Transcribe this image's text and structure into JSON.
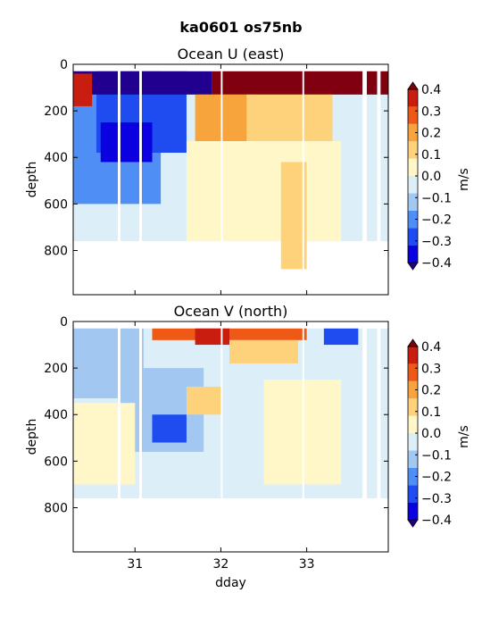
{
  "suptitle": "ka0601 os75nb",
  "colors": {
    "levels": [
      "#0a00e0",
      "#1f4cf0",
      "#4f8ef5",
      "#a2c8f2",
      "#dceff8",
      "#fff7c8",
      "#fdd27a",
      "#f8a43c",
      "#ee5a16",
      "#c91d10"
    ],
    "over": "#800010",
    "under": "#22008f",
    "nodata": "#ffffff"
  },
  "chart_data": [
    {
      "type": "heatmap",
      "title": "Ocean U (east)",
      "xlabel": "",
      "ylabel": "depth",
      "xlim": [
        30.28,
        33.95
      ],
      "ylim": [
        990,
        0
      ],
      "xticks": [
        31,
        32,
        33
      ],
      "yticks": [
        0,
        200,
        400,
        600,
        800
      ],
      "colorbar": {
        "label": "m/s",
        "ticks": [
          0.4,
          0.3,
          0.2,
          0.1,
          0.0,
          -0.1,
          -0.2,
          -0.3,
          -0.4
        ],
        "tick_labels": [
          "0.4",
          "0.3",
          "0.2",
          "0.1",
          "0.0",
          "−0.1",
          "−0.2",
          "−0.3",
          "−0.4"
        ],
        "range": [
          -0.4,
          0.4
        ],
        "extend": "both"
      },
      "regions": [
        {
          "x": [
            30.28,
            33.95
          ],
          "depth": [
            30,
            760
          ],
          "value": -0.05
        },
        {
          "x": [
            30.28,
            31.3
          ],
          "depth": [
            30,
            600
          ],
          "value": -0.18
        },
        {
          "x": [
            30.55,
            31.6
          ],
          "depth": [
            30,
            380
          ],
          "value": -0.32
        },
        {
          "x": [
            30.28,
            31.9
          ],
          "depth": [
            30,
            130
          ],
          "value": -0.45
        },
        {
          "x": [
            30.6,
            31.2
          ],
          "depth": [
            250,
            420
          ],
          "value": -0.38
        },
        {
          "x": [
            30.28,
            30.5
          ],
          "depth": [
            40,
            180
          ],
          "value": 0.35
        },
        {
          "x": [
            31.9,
            33.95
          ],
          "depth": [
            30,
            130
          ],
          "value": 0.45
        },
        {
          "x": [
            31.7,
            32.4
          ],
          "depth": [
            130,
            330
          ],
          "value": 0.22
        },
        {
          "x": [
            32.3,
            33.3
          ],
          "depth": [
            130,
            430
          ],
          "value": 0.12
        },
        {
          "x": [
            31.6,
            33.4
          ],
          "depth": [
            330,
            760
          ],
          "value": 0.06
        },
        {
          "x": [
            32.7,
            33.0
          ],
          "depth": [
            420,
            880
          ],
          "value": 0.1
        }
      ],
      "gaps": [
        [
          30.8,
          30.83
        ],
        [
          31.05,
          31.08
        ],
        [
          32.0,
          32.02
        ],
        [
          32.95,
          32.97
        ],
        [
          33.65,
          33.7
        ],
        [
          33.82,
          33.86
        ]
      ]
    },
    {
      "type": "heatmap",
      "title": "Ocean V (north)",
      "xlabel": "dday",
      "ylabel": "depth",
      "xlim": [
        30.28,
        33.95
      ],
      "ylim": [
        990,
        0
      ],
      "xticks": [
        31,
        32,
        33
      ],
      "yticks": [
        0,
        200,
        400,
        600,
        800
      ],
      "colorbar": {
        "label": "m/s",
        "ticks": [
          0.4,
          0.3,
          0.2,
          0.1,
          0.0,
          -0.1,
          -0.2,
          -0.3,
          -0.4
        ],
        "tick_labels": [
          "0.4",
          "0.3",
          "0.2",
          "0.1",
          "0.0",
          "−0.1",
          "−0.2",
          "−0.3",
          "−0.4"
        ],
        "range": [
          -0.4,
          0.4
        ],
        "extend": "both"
      },
      "regions": [
        {
          "x": [
            30.28,
            33.95
          ],
          "depth": [
            30,
            760
          ],
          "value": -0.05
        },
        {
          "x": [
            30.28,
            31.1
          ],
          "depth": [
            30,
            330
          ],
          "value": -0.12
        },
        {
          "x": [
            30.8,
            31.8
          ],
          "depth": [
            200,
            560
          ],
          "value": -0.15
        },
        {
          "x": [
            31.2,
            31.6
          ],
          "depth": [
            400,
            520
          ],
          "value": -0.25
        },
        {
          "x": [
            30.28,
            31.0
          ],
          "depth": [
            350,
            700
          ],
          "value": 0.05
        },
        {
          "x": [
            31.2,
            33.0
          ],
          "depth": [
            30,
            80
          ],
          "value": 0.25
        },
        {
          "x": [
            31.7,
            32.1
          ],
          "depth": [
            30,
            100
          ],
          "value": 0.38
        },
        {
          "x": [
            32.1,
            32.9
          ],
          "depth": [
            80,
            180
          ],
          "value": 0.15
        },
        {
          "x": [
            31.6,
            32.0
          ],
          "depth": [
            280,
            400
          ],
          "value": 0.12
        },
        {
          "x": [
            32.5,
            33.4
          ],
          "depth": [
            250,
            700
          ],
          "value": 0.06
        },
        {
          "x": [
            33.2,
            33.6
          ],
          "depth": [
            30,
            100
          ],
          "value": -0.3
        }
      ],
      "gaps": [
        [
          30.8,
          30.83
        ],
        [
          31.05,
          31.08
        ],
        [
          32.0,
          32.02
        ],
        [
          32.95,
          32.97
        ],
        [
          33.65,
          33.7
        ],
        [
          33.82,
          33.86
        ]
      ]
    }
  ]
}
